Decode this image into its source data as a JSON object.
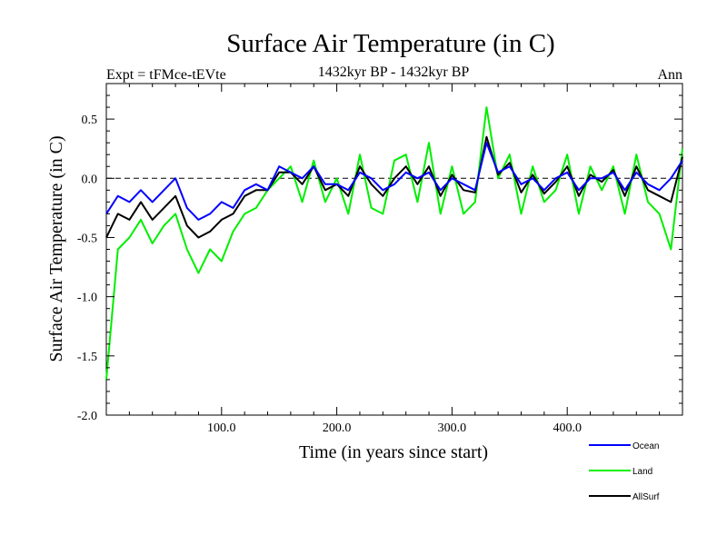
{
  "chart_data": {
    "type": "line",
    "title": "Surface Air Temperature (in C)",
    "subtitle": "1432kyr BP - 1432kyr BP",
    "expt_label": "Expt = tFMce-tEVte",
    "season_label": "Ann",
    "xlabel": "Time (in years since start)",
    "ylabel": "Surface Air Temperature (in C)",
    "xlim": [
      0,
      500
    ],
    "ylim": [
      -2.0,
      0.8
    ],
    "x_ticks": [
      100,
      200,
      300,
      400
    ],
    "x_tick_labels": [
      "100.0",
      "200.0",
      "300.0",
      "400.0"
    ],
    "y_ticks": [
      0.5,
      0.0,
      -0.5,
      -1.0,
      -1.5,
      -2.0
    ],
    "y_tick_labels": [
      "0.5",
      "0.0",
      "-0.5",
      "-1.0",
      "-1.5",
      "-2.0"
    ],
    "reference_line_y": 0.0,
    "legend_position": "bottom-right",
    "x": [
      0,
      10,
      20,
      30,
      40,
      50,
      60,
      70,
      80,
      90,
      100,
      110,
      120,
      130,
      140,
      150,
      160,
      170,
      180,
      190,
      200,
      210,
      220,
      230,
      240,
      250,
      260,
      270,
      280,
      290,
      300,
      310,
      320,
      330,
      340,
      350,
      360,
      370,
      380,
      390,
      400,
      410,
      420,
      430,
      440,
      450,
      460,
      470,
      480,
      490,
      500
    ],
    "series": [
      {
        "name": "Ocean",
        "color": "#0000ff",
        "values": [
          -0.3,
          -0.15,
          -0.2,
          -0.1,
          -0.2,
          -0.1,
          0.0,
          -0.25,
          -0.35,
          -0.3,
          -0.2,
          -0.25,
          -0.1,
          -0.05,
          -0.1,
          0.1,
          0.05,
          0.0,
          0.1,
          -0.05,
          -0.05,
          -0.1,
          0.05,
          0.0,
          -0.1,
          -0.05,
          0.05,
          0.0,
          0.05,
          -0.1,
          0.0,
          -0.05,
          -0.1,
          0.3,
          0.05,
          0.1,
          -0.05,
          0.0,
          -0.1,
          0.0,
          0.05,
          -0.1,
          0.0,
          0.0,
          0.05,
          -0.1,
          0.05,
          -0.05,
          -0.1,
          0.0,
          0.15
        ]
      },
      {
        "name": "Land",
        "color": "#00ee00",
        "values": [
          -1.7,
          -0.6,
          -0.5,
          -0.35,
          -0.55,
          -0.4,
          -0.3,
          -0.6,
          -0.8,
          -0.6,
          -0.7,
          -0.45,
          -0.3,
          -0.25,
          -0.1,
          0.0,
          0.1,
          -0.2,
          0.15,
          -0.2,
          0.0,
          -0.3,
          0.2,
          -0.25,
          -0.3,
          0.15,
          0.2,
          -0.2,
          0.3,
          -0.3,
          0.1,
          -0.3,
          -0.2,
          0.6,
          0.0,
          0.2,
          -0.3,
          0.1,
          -0.2,
          -0.1,
          0.2,
          -0.3,
          0.1,
          -0.1,
          0.1,
          -0.3,
          0.2,
          -0.2,
          -0.3,
          -0.6,
          0.25
        ]
      },
      {
        "name": "AllSurf",
        "color": "#000000",
        "values": [
          -0.5,
          -0.3,
          -0.35,
          -0.2,
          -0.35,
          -0.25,
          -0.15,
          -0.4,
          -0.5,
          -0.45,
          -0.35,
          -0.3,
          -0.15,
          -0.1,
          -0.1,
          0.05,
          0.05,
          -0.05,
          0.1,
          -0.1,
          -0.05,
          -0.15,
          0.1,
          -0.05,
          -0.15,
          0.0,
          0.1,
          -0.05,
          0.1,
          -0.15,
          0.03,
          -0.1,
          -0.12,
          0.35,
          0.03,
          0.13,
          -0.12,
          0.03,
          -0.13,
          -0.03,
          0.1,
          -0.15,
          0.03,
          -0.03,
          0.07,
          -0.15,
          0.1,
          -0.1,
          -0.15,
          -0.2,
          0.18
        ]
      }
    ]
  }
}
